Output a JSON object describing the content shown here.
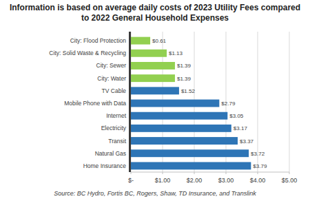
{
  "chart_data": {
    "type": "bar",
    "title": "Information is based on average daily costs of 2023 Utility Fees compared to 2022 General Household Expenses",
    "annotations": [
      "Source:  BC Hydro, Fortis BC, Rogers, Shaw, TD Insurance, and Translink"
    ],
    "orientation": "horizontal",
    "categories": [
      "City: Flood Protection",
      "City: Solid Waste & Recycling",
      "City: Sewer",
      "City: Water",
      "TV Cable",
      "Mobile Phone with Data",
      "Internet",
      "Electricity",
      "Transit",
      "Natural Gas",
      "Home Insurance"
    ],
    "values": [
      0.61,
      1.13,
      1.39,
      1.39,
      1.52,
      2.79,
      3.05,
      3.17,
      3.37,
      3.72,
      3.79
    ],
    "value_labels": [
      "$0.61",
      "$1.13",
      "$1.39",
      "$1.39",
      "$1.52",
      "$2.79",
      "$3.05",
      "$3.17",
      "$3.37",
      "$3.72",
      "$3.79"
    ],
    "colors": [
      "#92d050",
      "#92d050",
      "#92d050",
      "#92d050",
      "#2e75b6",
      "#2e75b6",
      "#2e75b6",
      "#2e75b6",
      "#2e75b6",
      "#2e75b6",
      "#2e75b6"
    ],
    "xlim": [
      0,
      5
    ],
    "xticks": [
      {
        "value": 0,
        "label": "$-"
      },
      {
        "value": 1,
        "label": "$1.00"
      },
      {
        "value": 2,
        "label": "$2.00"
      },
      {
        "value": 3,
        "label": "$3.00"
      },
      {
        "value": 4,
        "label": "$4.00"
      },
      {
        "value": 5,
        "label": "$5.00"
      }
    ],
    "grid": true,
    "data_labels": true
  }
}
